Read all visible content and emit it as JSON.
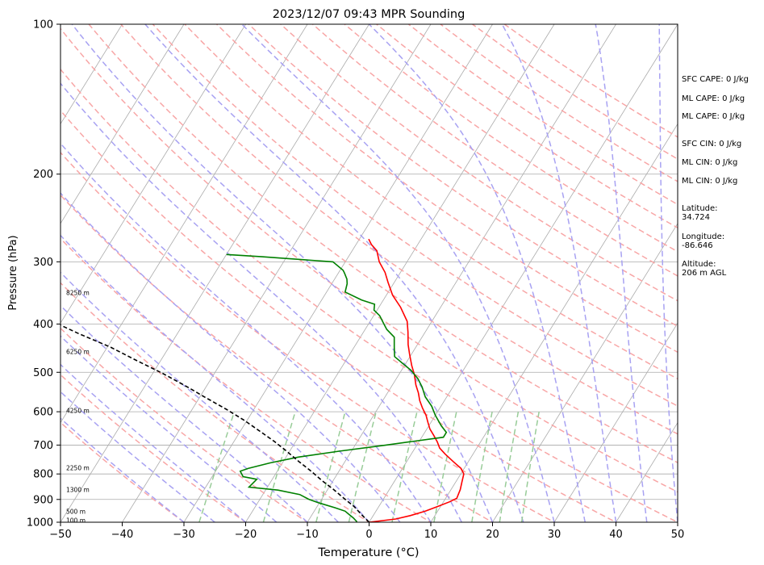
{
  "chart_data": {
    "type": "line",
    "title": "2023/12/07 09:43 MPR Sounding",
    "xlabel": "Temperature (°C)",
    "ylabel": "Pressure (hPa)",
    "xlim": [
      -50,
      50
    ],
    "ylim": [
      1000,
      100
    ],
    "y_scale": "log",
    "grid": true,
    "x_ticks": [
      "−50",
      "−40",
      "−30",
      "−20",
      "−10",
      "0",
      "10",
      "20",
      "30",
      "40",
      "50"
    ],
    "y_ticks": [
      "100",
      "200",
      "300",
      "400",
      "500",
      "600",
      "700",
      "800",
      "900",
      "1000"
    ],
    "height_labels": [
      {
        "p": 995,
        "label": "100 m"
      },
      {
        "p": 955,
        "label": "500 m"
      },
      {
        "p": 863,
        "label": "1300 m"
      },
      {
        "p": 780,
        "label": "2250 m"
      },
      {
        "p": 599,
        "label": "4250 m"
      },
      {
        "p": 456,
        "label": "6250 m"
      },
      {
        "p": 347,
        "label": "8250 m"
      }
    ],
    "series": [
      {
        "color": "#ff0000",
        "points": [
          [
            0,
            1000
          ],
          [
            4,
            985
          ],
          [
            6,
            970
          ],
          [
            8,
            950
          ],
          [
            9.5,
            930
          ],
          [
            11,
            910
          ],
          [
            11.8,
            895
          ],
          [
            11.5,
            860
          ],
          [
            11,
            830
          ],
          [
            10.5,
            800
          ],
          [
            9.5,
            780
          ],
          [
            7.5,
            755
          ],
          [
            5.5,
            730
          ],
          [
            4,
            710
          ],
          [
            3,
            690
          ],
          [
            1.8,
            670
          ],
          [
            0.5,
            650
          ],
          [
            -0.5,
            630
          ],
          [
            -1.5,
            610
          ],
          [
            -2.8,
            590
          ],
          [
            -4,
            570
          ],
          [
            -5,
            550
          ],
          [
            -6.2,
            530
          ],
          [
            -7.5,
            505
          ],
          [
            -8.8,
            485
          ],
          [
            -10.3,
            460
          ],
          [
            -11.5,
            440
          ],
          [
            -12.8,
            415
          ],
          [
            -14,
            395
          ],
          [
            -16.5,
            370
          ],
          [
            -19,
            350
          ],
          [
            -21,
            330
          ],
          [
            -22.5,
            315
          ],
          [
            -24.5,
            300
          ],
          [
            -26,
            285
          ],
          [
            -27.5,
            277
          ],
          [
            -28.5,
            270
          ]
        ]
      },
      {
        "color": "#008000",
        "points": [
          [
            -2,
            998
          ],
          [
            -3,
            980
          ],
          [
            -4,
            965
          ],
          [
            -5,
            950
          ],
          [
            -7,
            935
          ],
          [
            -10,
            915
          ],
          [
            -12,
            900
          ],
          [
            -14,
            880
          ],
          [
            -18,
            862
          ],
          [
            -23,
            850
          ],
          [
            -22.5,
            820
          ],
          [
            -25,
            810
          ],
          [
            -26,
            790
          ],
          [
            -25,
            780
          ],
          [
            -22,
            760
          ],
          [
            -18,
            740
          ],
          [
            -12,
            720
          ],
          [
            -5,
            700
          ],
          [
            3.5,
            675
          ],
          [
            3.5,
            660
          ],
          [
            2,
            640
          ],
          [
            0,
            610
          ],
          [
            -1.5,
            585
          ],
          [
            -3.5,
            560
          ],
          [
            -5,
            535
          ],
          [
            -6.5,
            515
          ],
          [
            -8.5,
            495
          ],
          [
            -10.5,
            480
          ],
          [
            -12.5,
            465
          ],
          [
            -13.5,
            445
          ],
          [
            -14.5,
            425
          ],
          [
            -16.5,
            410
          ],
          [
            -17.5,
            400
          ],
          [
            -19,
            385
          ],
          [
            -20.5,
            375
          ],
          [
            -21,
            365
          ],
          [
            -23.5,
            358
          ],
          [
            -27,
            345
          ],
          [
            -27.5,
            332
          ],
          [
            -28,
            325
          ],
          [
            -29,
            316
          ],
          [
            -29.5,
            312
          ],
          [
            -32,
            300
          ],
          [
            -44,
            293
          ],
          [
            -50,
            290
          ]
        ]
      }
    ],
    "parcel_profile": {
      "color": "#000000",
      "points": [
        [
          0,
          1000
        ],
        [
          -2,
          965
        ],
        [
          -4,
          930
        ],
        [
          -6.5,
          895
        ],
        [
          -9,
          860
        ],
        [
          -11.8,
          825
        ],
        [
          -14.5,
          790
        ],
        [
          -17.5,
          755
        ],
        [
          -20.5,
          720
        ],
        [
          -23.5,
          688
        ],
        [
          -27,
          655
        ],
        [
          -30.5,
          624
        ],
        [
          -34.5,
          593
        ],
        [
          -39,
          562
        ],
        [
          -43.5,
          532
        ],
        [
          -48.5,
          502
        ],
        [
          -54,
          473
        ],
        [
          -59.5,
          445
        ],
        [
          -66,
          418
        ],
        [
          -72,
          393
        ],
        [
          -79,
          368
        ],
        [
          -86,
          345
        ]
      ]
    },
    "reference_lines": {
      "isotherm_color": "#aaaaaa",
      "dry_adiabat_color": "#f8a6a6",
      "moist_adiabat_color": "#a8a2f2",
      "mixing_ratio_color": "#98cc98"
    }
  },
  "indices": [
    "SFC CAPE: 0 J/kg",
    "ML CAPE: 0 J/kg",
    "ML CAPE: 0 J/kg",
    "SFC CIN: 0 J/kg",
    "ML CIN: 0 J/kg",
    "ML CIN: 0 J/kg"
  ],
  "station": {
    "latitude": "Latitude:\n34.724",
    "longitude": "Longitude:\n-86.646",
    "altitude": "Altitude:\n206 m AGL"
  }
}
